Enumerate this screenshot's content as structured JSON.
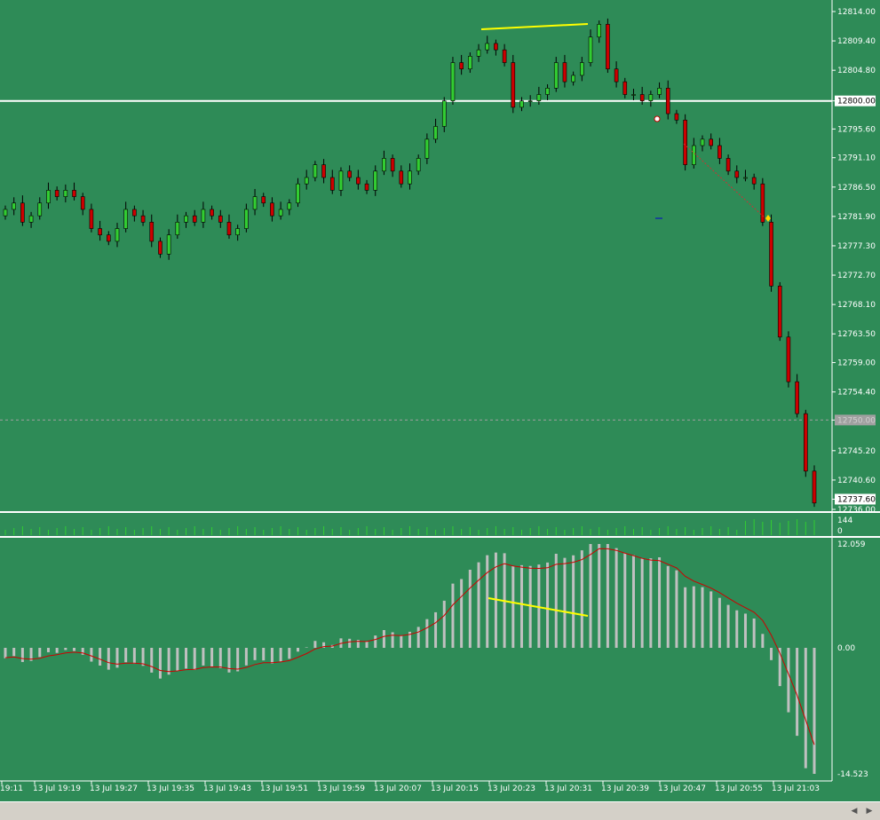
{
  "colors": {
    "background": "#2e8b57",
    "bull": "#32cd32",
    "bear": "#cc0000",
    "wick": "#000000",
    "axis_text": "#ffffff",
    "hist": "#c0c0c0",
    "signal": "#cc0000",
    "divergence": "#ffff00",
    "volume": "#32cd32"
  },
  "price_axis": {
    "labels": [
      "12814.00",
      "12809.40",
      "12804.80",
      "12800.00",
      "12795.60",
      "12791.10",
      "12786.50",
      "12781.90",
      "12777.30",
      "12772.70",
      "12768.10",
      "12763.50",
      "12759.00",
      "12754.40",
      "12750.00",
      "12745.20",
      "12740.60",
      "12737.60",
      "12736.00"
    ],
    "current_price": "12737.60",
    "level_line": "12800.00",
    "dashed_level": "12750.00"
  },
  "volume_axis": {
    "max": "144",
    "min": "0"
  },
  "macd_axis": {
    "top": "12.059",
    "zero": "0.00",
    "bottom": "-14.523"
  },
  "time_axis": [
    "19:11",
    "13 Jul 19:19",
    "13 Jul 19:27",
    "13 Jul 19:35",
    "13 Jul 19:43",
    "13 Jul 19:51",
    "13 Jul 19:59",
    "13 Jul 20:07",
    "13 Jul 20:15",
    "13 Jul 20:23",
    "13 Jul 20:31",
    "13 Jul 20:39",
    "13 Jul 20:47",
    "13 Jul 20:55",
    "13 Jul 21:03"
  ],
  "scroll_left_icon": "triangle-left-icon",
  "scroll_right_icon": "triangle-right-icon"
}
